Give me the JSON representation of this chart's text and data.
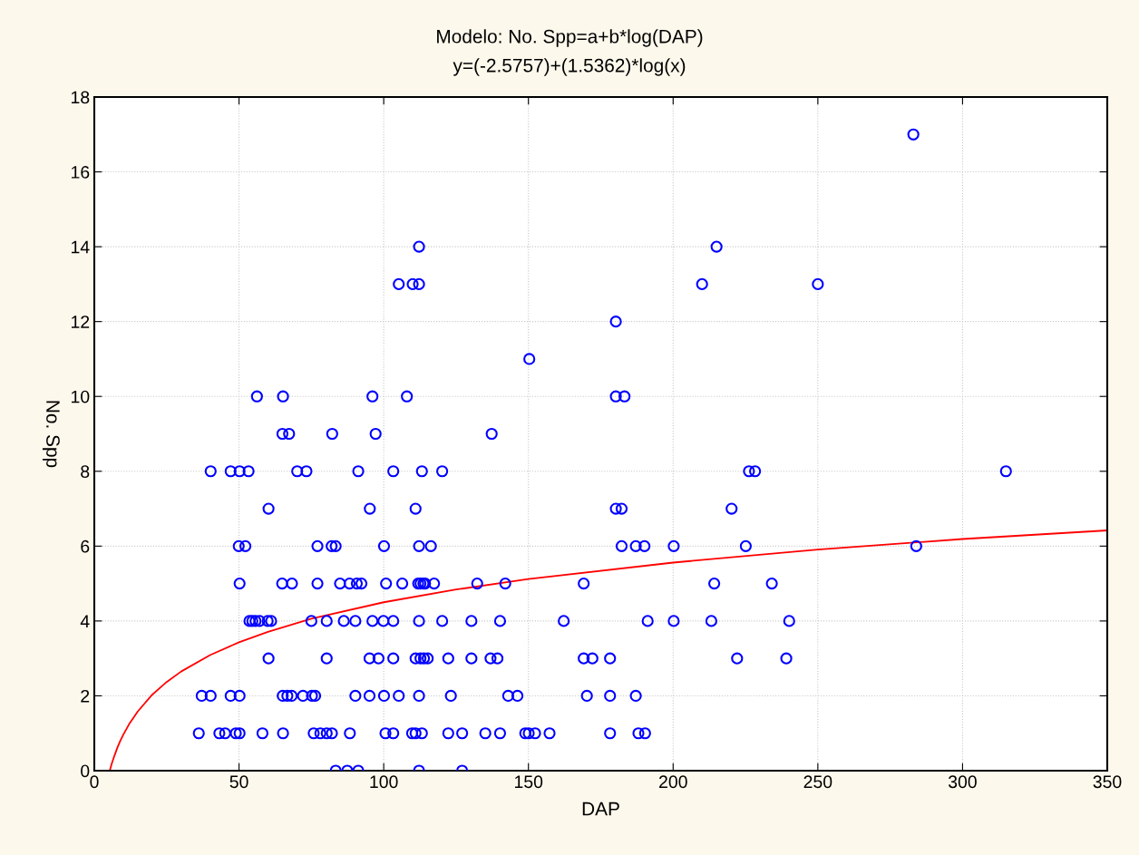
{
  "chart_data": {
    "type": "scatter",
    "title": "Modelo: No. Spp=a+b*log(DAP)",
    "subtitle": "y=(-2.5757)+(1.5362)*log(x)",
    "xlabel": "DAP",
    "ylabel": "No. Spp",
    "xlim": [
      0,
      350
    ],
    "xticks": [
      0,
      50,
      100,
      150,
      200,
      250,
      300,
      350
    ],
    "ylim": [
      0,
      18
    ],
    "yticks": [
      0,
      2,
      4,
      6,
      8,
      10,
      12,
      14,
      16,
      18
    ],
    "grid": true,
    "legend": false,
    "series": [
      {
        "color": "#0000ff",
        "marker": "circle",
        "x": [
          83.4,
          87.4,
          91.2,
          112.2,
          127.1,
          36.1,
          43.2,
          45.2,
          48.9,
          50.2,
          58.1,
          65.2,
          75.8,
          78.1,
          80.3,
          82.1,
          88.3,
          100.6,
          103.3,
          109.8,
          111.0,
          113.2,
          122.3,
          127.1,
          135.1,
          140.2,
          148.9,
          150.1,
          152.3,
          157.3,
          178.2,
          188.0,
          190.3,
          37.1,
          40.2,
          47.1,
          50.2,
          65.1,
          66.7,
          68.2,
          72.1,
          75.2,
          76.3,
          90.2,
          95.1,
          100.1,
          105.2,
          112.2,
          123.2,
          143.0,
          146.2,
          170.2,
          178.2,
          187.1,
          60.2,
          80.3,
          95.1,
          98.2,
          103.3,
          111.0,
          112.7,
          113.9,
          115.2,
          122.3,
          130.3,
          136.9,
          139.3,
          169.1,
          172.1,
          178.2,
          222.1,
          239.1,
          53.6,
          54.6,
          55.7,
          57.1,
          59.9,
          61.1,
          75.0,
          80.3,
          86.2,
          90.2,
          96.1,
          99.9,
          103.3,
          112.2,
          120.2,
          130.3,
          140.2,
          162.2,
          191.2,
          200.2,
          213.2,
          240.1,
          50.2,
          64.9,
          68.3,
          77.1,
          84.9,
          88.2,
          90.7,
          92.3,
          100.8,
          106.4,
          111.9,
          112.7,
          113.7,
          114.3,
          117.4,
          132.3,
          142.0,
          169.1,
          214.2,
          234.1,
          49.9,
          52.2,
          77.1,
          82.0,
          83.4,
          100.1,
          112.2,
          116.3,
          182.2,
          187.1,
          190.1,
          200.2,
          225.1,
          284.0,
          60.2,
          95.2,
          111.0,
          180.2,
          182.2,
          220.2,
          40.2,
          47.1,
          50.2,
          53.3,
          70.1,
          73.3,
          91.2,
          103.3,
          113.2,
          120.2,
          226.2,
          228.3,
          315.0,
          65.0,
          67.3,
          82.2,
          97.2,
          137.3,
          56.2,
          65.2,
          96.1,
          108.0,
          180.2,
          183.2,
          150.3,
          180.2,
          105.2,
          110.0,
          112.2,
          210.0,
          250.0,
          112.2,
          215.0,
          283.0
        ],
        "values": [
          0,
          0,
          0,
          0,
          0,
          1,
          1,
          1,
          1,
          1,
          1,
          1,
          1,
          1,
          1,
          1,
          1,
          1,
          1,
          1,
          1,
          1,
          1,
          1,
          1,
          1,
          1,
          1,
          1,
          1,
          1,
          1,
          1,
          2,
          2,
          2,
          2,
          2,
          2,
          2,
          2,
          2,
          2,
          2,
          2,
          2,
          2,
          2,
          2,
          2,
          2,
          2,
          2,
          2,
          3,
          3,
          3,
          3,
          3,
          3,
          3,
          3,
          3,
          3,
          3,
          3,
          3,
          3,
          3,
          3,
          3,
          3,
          4,
          4,
          4,
          4,
          4,
          4,
          4,
          4,
          4,
          4,
          4,
          4,
          4,
          4,
          4,
          4,
          4,
          4,
          4,
          4,
          4,
          4,
          5,
          5,
          5,
          5,
          5,
          5,
          5,
          5,
          5,
          5,
          5,
          5,
          5,
          5,
          5,
          5,
          5,
          5,
          5,
          5,
          6,
          6,
          6,
          6,
          6,
          6,
          6,
          6,
          6,
          6,
          6,
          6,
          6,
          6,
          7,
          7,
          7,
          7,
          7,
          7,
          8,
          8,
          8,
          8,
          8,
          8,
          8,
          8,
          8,
          8,
          8,
          8,
          8,
          9,
          9,
          9,
          9,
          9,
          10,
          10,
          10,
          10,
          10,
          10,
          11,
          12,
          13,
          13,
          13,
          13,
          13,
          14,
          14,
          17
        ]
      },
      {
        "type": "line",
        "color": "#ff0000",
        "marker": "none",
        "line_style": "solid",
        "x": [
          5.35,
          6,
          7,
          8,
          9,
          10,
          12,
          15,
          20,
          25,
          30,
          40,
          50,
          60,
          75,
          100,
          125,
          150,
          200,
          250,
          300,
          350
        ],
        "values": [
          0,
          0.18,
          0.41,
          0.62,
          0.8,
          0.96,
          1.24,
          1.58,
          2.03,
          2.37,
          2.65,
          3.09,
          3.43,
          3.71,
          4.06,
          4.5,
          4.84,
          5.12,
          5.56,
          5.91,
          6.19,
          6.42
        ]
      }
    ]
  }
}
